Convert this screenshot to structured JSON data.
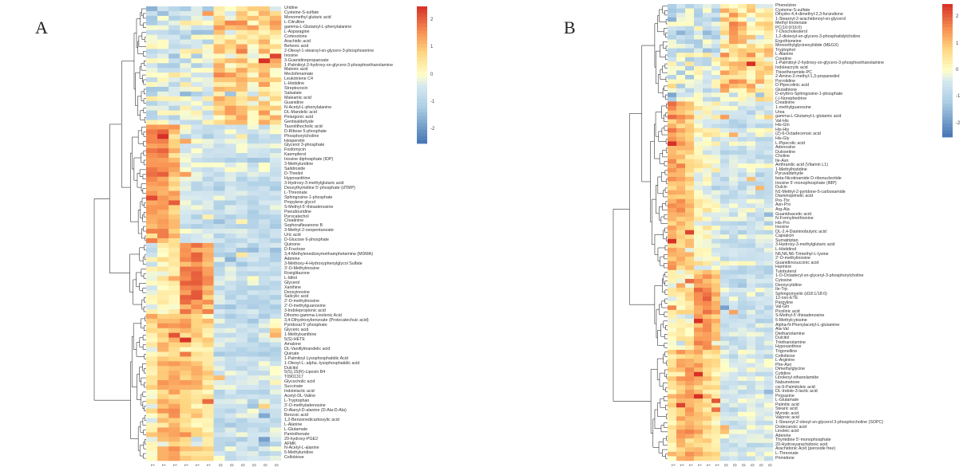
{
  "panels": [
    {
      "letter": "A",
      "column_labels": [
        "1",
        "1",
        "1",
        "1",
        "1",
        "1",
        "0",
        "0",
        "0",
        "0",
        "0",
        "0"
      ],
      "colorbar_ticks": [
        "2",
        "1",
        "0",
        "-1",
        "-2"
      ],
      "row_labels": [
        "Uridine",
        "Cysteine-S-sulfate",
        "Monomethyl glutaric acid",
        "L-Citrulline",
        "gamma-L-Glutamyl-L-phenylalanine",
        "L-Asparagine",
        "Cortexolone",
        "Arachidic acid",
        "Behenic acid",
        "2-Oleoyl-1-stearoyl-sn-glycero-3-phosphoserine",
        "Inosine",
        "3-Guanidinopropanoate",
        "1-Palmitoyl-2-hydroxy-sn-glycero-3-phosphoethanolamine",
        "Malonic acid",
        "Meclofenamate",
        "Leukotriene C4",
        "L-Histidine",
        "Streptozocin",
        "Salsalate",
        "Maleamic acid",
        "Guanidine",
        "N-Acetyl-L-phenylalanine",
        "DL-Mandelic acid",
        "Pelargonic acid",
        "Gentisaldehyde",
        "Taurolithocholic acid",
        "D-Ribose 5-phosphate",
        "Phosphorylcholine",
        "Hesperetin",
        "Glycerol 3-phosphate",
        "Fosfomycin",
        "Kaempferol",
        "Inosine diphosphate (IDP)",
        "3-Methyluridine",
        "Salidroside",
        "D-Threitol",
        "Hypoxanthine",
        "3-Hydroxy-3-methylglutaric acid",
        "Deoxythymidine 5'-phosphate (dTMP)",
        "L-Threonate",
        "Sphingosine-1-phosphate",
        "Propylene glycol",
        "S-Methyl-5'-thioadenosine",
        "Pseudouridine",
        "Pyrocatechol",
        "Creatinine",
        "Sophoraflavanone B",
        "3-Methyl-2-oxopentanoate",
        "Uric acid",
        "D-Glucose 6-phosphate",
        "Quinone",
        "D-Fructose",
        "3,4-Methylenedioxymethamphetamine (MDMA)",
        "Adenine",
        "3-Methoxy-4-Hydroxyphenylglycol Sulfate",
        "3'-O-Methylinosine",
        "Rosiglitazone",
        "L-Iditol",
        "Glycerol",
        "Xanthine",
        "Deoxyinosine",
        "Salicylic acid",
        "2'-O-methylinosine",
        "2'-O-methylguanosine",
        "3-Indolepropionic acid",
        "Dihomo-gamma-Linolenic Acid",
        "3,4-Dihydroxybenzoate (Protocatechuic acid)",
        "Pyridoxal 5'-phosphate",
        "Glyceric acid",
        "1-Methylxanthine",
        "5(S)-HETE",
        "Amalone",
        "DL-Vanillylmandelic acid",
        "Quinate",
        "1-Palmitoyl Lysophosphatidic Acid",
        "1-Oleoyl-L-.alpha.-lysophosphatidic acid",
        "Dulcitol",
        "5(S),15(R)-Lipoxin B4",
        "T0901317",
        "Glycocholic acid",
        "Succinate",
        "Indolelactic acid",
        "Acetyl-DL-Valine",
        "L-Tryptophan",
        "3'-O-methyladenosine",
        "D-Alanyl-D-alanine (D-Ala-D-Ala)",
        "Benzoic acid",
        "1,2-Benzenedicarboxylic acid",
        "L-Alanine",
        "L-Glutamate",
        "Pantothenate",
        "20-hydroxy-PGE2",
        "AFMK",
        "N-Acetyl-L-alanine",
        "5-Methyluridine",
        "Cellobiose"
      ]
    },
    {
      "letter": "B",
      "column_labels": [
        "1",
        "1",
        "1",
        "1",
        "1",
        "1",
        "0",
        "0",
        "0",
        "0",
        "0",
        "0"
      ],
      "colorbar_ticks": [
        "2",
        "1",
        "0",
        "-1",
        "-2"
      ],
      "row_labels": [
        "Phenelzine",
        "Cysteine-S-sulfate",
        "Dihydro-4,4-dimethyl-2,3-furandione",
        "1-Stearoyl-2-arachidonoyl-sn-glycerol",
        "Methyl linolenate",
        "PC(16:0/16:0)",
        "7-Oxocholesterol",
        "1,2-dioleoyl-sn-glycero-3-phosphatidylcholine",
        "Ergothioneine",
        "Monoethylglycinexylidide (MEGX)",
        "Tryptophol",
        "L-Alanine",
        "Creatine",
        "1-Palmitoyl-2-hydroxy-sn-glycero-3-phosphoethanolamine",
        "Indoleacrylic acid",
        "Thioetheramide-PC",
        "2-Amino-2-methyl-1,3-propanediol",
        "Pyrrolidine",
        "D-Pipecolinic acid",
        "Glutathione",
        "D-erythro-Sphingosine-1-phosphate",
        "(-)-Norephedrine",
        "Creatinine",
        "1-methylguanosine",
        "Urea",
        "gamma-L-Glutamyl-L-glutamic acid",
        "Val-His",
        "His-Gln",
        "His-His",
        "(Z)-6-Octadecenoic acid",
        "His-Gly",
        "L-Pipecolic acid",
        "Adenosine",
        "Duloxetine",
        "Choline",
        "Ile-Asn",
        "Anthranilic acid (Vitamin L1)",
        "1-Methylhistidine",
        "Pyruvaldehyde",
        "beta-Nicotinamide D-ribonucleotide",
        "Inosine 5'-monophosphate (IMP)",
        "Dulcin",
        "N1-Methyl-2-pyridone-5-carboxamide",
        "Diaminopimelic acid",
        "Pro-Thr",
        "Asn-Pro",
        "Arg-Ala",
        "Guanidoacetic acid",
        "N-Formylmethionine",
        "His-Pro",
        "Inosine",
        "DL-2,4-Diaminobutyric acid",
        "Capsaicin",
        "Sumatriptan",
        "3-Hydroxy-3-methylglutaric acid",
        "L-Histidinol",
        "N6,N6,N6-Trimethyl-L-lysine",
        "2'-O-methylinosine",
        "Guanidinosuccinic acid",
        "Harmine",
        "Tulobuterol",
        "1-O-Octadecyl-sn-glyceryl-3-phosphorylcholine",
        "Cytosine",
        "Deoxycytidine",
        "Ile-Trp",
        "Sphingomyelin (d18:1/18:0)",
        "12-oxo-ETE",
        "Pargyline",
        "Val-Gln",
        "Picolinic acid",
        "S-Methyl-5'-thioadenosine",
        "5-Methylcytosine",
        "Alpha-N-Phenylacetyl-L-glutamine",
        "Ala-Val",
        "Diethanolamine",
        "Dulcitol",
        "Triethanolamine",
        "Hypoxanthine",
        "Trigonelline",
        "Cellobiose",
        "L-Arginine",
        "Phe-Asn",
        "Dimethylglycine",
        "Cytidine",
        "Linoleoyl ethanolamide",
        "Nabumetone",
        "cis-9-Palmitoleic acid",
        "DL-Indole-3-lactic acid",
        "Propazine",
        "L-Glutamate",
        "Palmitic acid",
        "Stearic acid",
        "Myristic acid",
        "Valproic acid",
        "1-Stearoyl-2-oleoyl-sn-glycerol 3-phosphocholine (SOPC)",
        "Dodecanoic acid",
        "Linoleic acid",
        "Adenine",
        "Thymidine 5'-monophosphate",
        "20-Hydroxyarachidonic acid",
        "Arachidonic Acid (peroxide free)",
        "L-Threonate",
        "Primidone"
      ]
    }
  ],
  "chart_data": [
    {
      "type": "heatmap",
      "title": "A",
      "columns": [
        "1",
        "1",
        "1",
        "1",
        "1",
        "1",
        "0",
        "0",
        "0",
        "0",
        "0",
        "0"
      ],
      "value_range": [
        -2.5,
        2.5
      ],
      "colorbar_ticks": [
        2,
        1,
        0,
        -1,
        -2
      ],
      "row_groups": [
        {
          "rows": [
            0,
            24
          ],
          "col_means": [
            -0.6,
            -0.6,
            -0.5,
            -0.5,
            -0.4,
            -0.4,
            0.6,
            0.5,
            0.7,
            0.4,
            0.6,
            0.5
          ],
          "spread": 1.6
        },
        {
          "rows": [
            25,
            49
          ],
          "col_means": [
            1.6,
            1.4,
            1.0,
            -0.3,
            -0.5,
            -0.6,
            -0.7,
            -0.6,
            -0.6,
            -0.7,
            -0.6,
            -0.6
          ],
          "spread": 0.9
        },
        {
          "rows": [
            50,
            64
          ],
          "col_means": [
            -0.2,
            0.2,
            0.6,
            1.6,
            1.8,
            1.2,
            -0.7,
            -0.7,
            -0.7,
            -0.6,
            -0.7,
            -0.7
          ],
          "spread": 0.9
        },
        {
          "rows": [
            65,
            95
          ],
          "col_means": [
            0.3,
            1.0,
            1.2,
            0.9,
            0.7,
            0.5,
            -0.6,
            -0.6,
            -0.6,
            -0.7,
            -0.6,
            -0.5
          ],
          "spread": 0.9
        }
      ]
    },
    {
      "type": "heatmap",
      "title": "B",
      "columns": [
        "1",
        "1",
        "1",
        "1",
        "1",
        "1",
        "0",
        "0",
        "0",
        "0",
        "0",
        "0"
      ],
      "value_range": [
        -2.5,
        2.5
      ],
      "colorbar_ticks": [
        2,
        1,
        0,
        -1,
        -2
      ],
      "row_groups": [
        {
          "rows": [
            0,
            21
          ],
          "col_means": [
            -0.6,
            -0.6,
            -0.5,
            -0.4,
            -0.5,
            -0.3,
            0.7,
            0.9,
            0.6,
            0.6,
            0.4,
            0.5
          ],
          "spread": 1.6
        },
        {
          "rows": [
            22,
            59
          ],
          "col_means": [
            1.3,
            1.1,
            0.9,
            0.1,
            0.0,
            -0.2,
            -0.5,
            -0.5,
            -0.5,
            -0.5,
            -0.5,
            -0.5
          ],
          "spread": 0.9
        },
        {
          "rows": [
            60,
            77
          ],
          "col_means": [
            0.1,
            0.3,
            0.4,
            1.4,
            1.5,
            1.0,
            -0.6,
            -0.6,
            -0.6,
            -0.5,
            -0.6,
            -0.6
          ],
          "spread": 0.9
        },
        {
          "rows": [
            78,
            102
          ],
          "col_means": [
            0.5,
            1.0,
            1.3,
            1.0,
            0.6,
            0.4,
            -0.5,
            -0.5,
            -0.5,
            -0.5,
            -0.5,
            -0.5
          ],
          "spread": 0.8
        }
      ]
    }
  ]
}
